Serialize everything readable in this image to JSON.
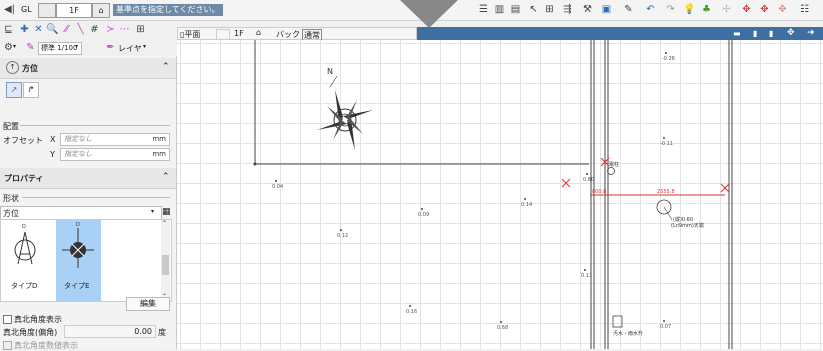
{
  "toolbar": {
    "level_label": "GL",
    "floor": "1F",
    "hint": "基準点を指定してください。",
    "scale": "標準 1/100",
    "layer_label": "レイヤ"
  },
  "left_panel": {
    "direction_title": "方位",
    "placement_title": "配置",
    "offset_x_label": "オフセット",
    "x_axis": "X",
    "y_axis": "Y",
    "placeholder": "指定なし",
    "unit": "mm",
    "property_title": "プロパティ",
    "shape_label": "形状",
    "shape_value": "方位",
    "type_d": "タイプD",
    "type_e": "タイプE",
    "edit_button": "編集",
    "true_north_display": "真北角度表示",
    "true_north_angle_label": "真北角度(偏角)",
    "true_north_angle_value": "0.00",
    "degree_unit": "度",
    "true_north_numeric": "真北角度数値表示"
  },
  "view_bar": {
    "plan_label": "平面",
    "floor": "1F",
    "back_label": "バック",
    "normal_label": "通常"
  },
  "canvas_labels": {
    "p1": "-0.26",
    "p2": "-0.11",
    "p3": "0.04",
    "p4": "0.09",
    "p5": "0.14",
    "p6": "0.12",
    "p7": "0.80",
    "p8": "0.11",
    "p9": "0.16",
    "p10": "0.68",
    "p11": "0.07",
    "dimension": "2555.8",
    "dim_left": "800.8",
    "marker1": "電柱",
    "circle_note": "(縦)0.60",
    "circle_note2": "(Ln9mm)天端",
    "box_note": "汚水・雨水升",
    "north_letter": "N"
  },
  "colors": {
    "hint_bg": "#6e8aa6",
    "view_bar": "#3d6fa2",
    "selected_type": "#a9d0f5",
    "red": "#e03030"
  }
}
